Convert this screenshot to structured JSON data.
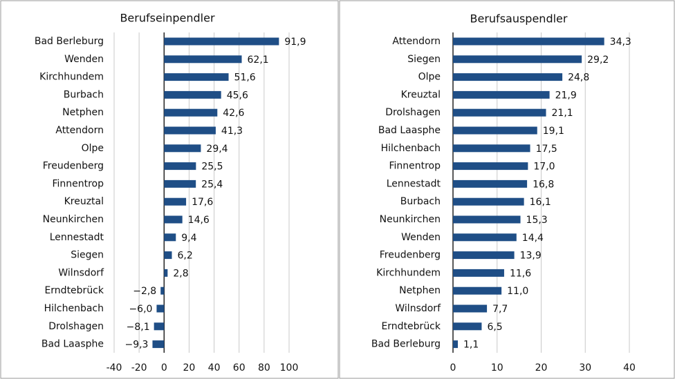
{
  "chart_data": [
    {
      "type": "bar",
      "orientation": "horizontal",
      "title": "Berufseinpendler",
      "categories": [
        "Bad Berleburg",
        "Wenden",
        "Kirchhundem",
        "Burbach",
        "Netphen",
        "Attendorn",
        "Olpe",
        "Freudenberg",
        "Finnentrop",
        "Kreuztal",
        "Neunkirchen",
        "Lennestadt",
        "Siegen",
        "Wilnsdorf",
        "Erndtebrück",
        "Hilchenbach",
        "Drolshagen",
        "Bad Laasphe"
      ],
      "values": [
        91.9,
        62.1,
        51.6,
        45.6,
        42.6,
        41.3,
        29.4,
        25.5,
        25.4,
        17.6,
        14.6,
        9.4,
        6.2,
        2.8,
        -2.8,
        -6.0,
        -8.1,
        -9.3
      ],
      "value_labels": [
        "91,9",
        "62,1",
        "51,6",
        "45,6",
        "42,6",
        "41,3",
        "29,4",
        "25,5",
        "25,4",
        "17,6",
        "14,6",
        "9,4",
        "6,2",
        "2,8",
        "−2,8",
        "−6,0",
        "−8,1",
        "−9,3"
      ],
      "color": "#1f4e86",
      "xlim": [
        -40,
        100
      ],
      "xticks": [
        -40,
        -20,
        0,
        20,
        40,
        60,
        80,
        100
      ],
      "grid": true
    },
    {
      "type": "bar",
      "orientation": "horizontal",
      "title": "Berufsauspendler",
      "categories": [
        "Attendorn",
        "Siegen",
        "Olpe",
        "Kreuztal",
        "Drolshagen",
        "Bad Laasphe",
        "Hilchenbach",
        "Finnentrop",
        "Lennestadt",
        "Burbach",
        "Neunkirchen",
        "Wenden",
        "Freudenberg",
        "Kirchhundem",
        "Netphen",
        "Wilnsdorf",
        "Erndtebrück",
        "Bad Berleburg"
      ],
      "values": [
        34.3,
        29.2,
        24.8,
        21.9,
        21.1,
        19.1,
        17.5,
        17.0,
        16.8,
        16.1,
        15.3,
        14.4,
        13.9,
        11.6,
        11.0,
        7.7,
        6.5,
        1.1
      ],
      "value_labels": [
        "34,3",
        "29,2",
        "24,8",
        "21,9",
        "21,1",
        "19,1",
        "17,5",
        "17,0",
        "16,8",
        "16,1",
        "15,3",
        "14,4",
        "13,9",
        "11,6",
        "11,0",
        "7,7",
        "6,5",
        "1,1"
      ],
      "color": "#1f4e86",
      "xlim": [
        0,
        40
      ],
      "xticks": [
        0,
        10,
        20,
        30,
        40
      ],
      "grid": true
    }
  ]
}
